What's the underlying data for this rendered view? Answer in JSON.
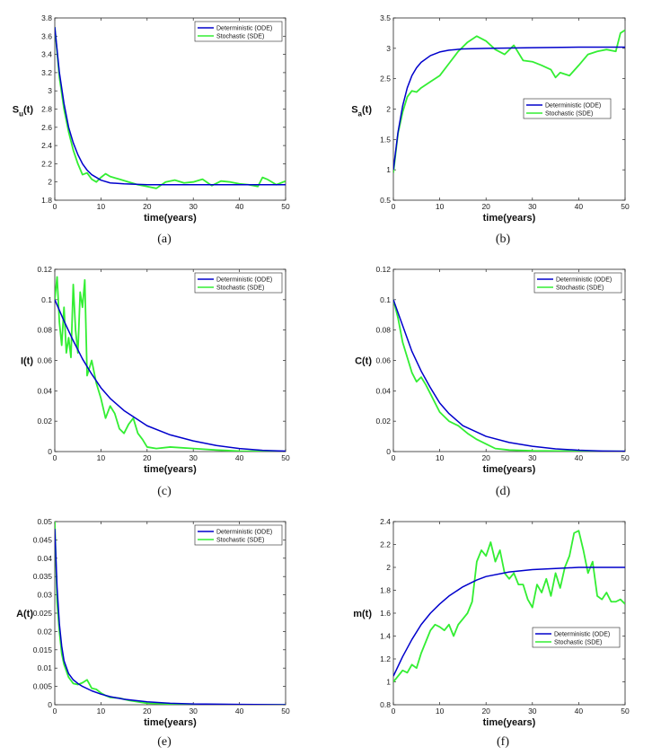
{
  "chart_data": [
    {
      "type": "line",
      "caption": "(a)",
      "ylabel": "S",
      "ylabel_sub": "u",
      "ylabel_tail": "(t)",
      "xlabel": "time(years)",
      "xlim": [
        0,
        50
      ],
      "ylim": [
        1.8,
        3.8
      ],
      "xticks": [
        0,
        10,
        20,
        30,
        40,
        50
      ],
      "yticks": [
        1.8,
        2,
        2.2,
        2.4,
        2.6,
        2.8,
        3,
        3.2,
        3.4,
        3.6,
        3.8
      ],
      "legend": "top-right",
      "series": [
        {
          "name": "Deterministic (ODE)",
          "color": "#0000cc",
          "x": [
            0,
            1,
            2,
            3,
            4,
            5,
            6,
            7,
            8,
            10,
            12,
            15,
            20,
            30,
            40,
            50
          ],
          "y": [
            3.7,
            3.2,
            2.86,
            2.6,
            2.43,
            2.3,
            2.2,
            2.13,
            2.08,
            2.02,
            1.99,
            1.98,
            1.97,
            1.97,
            1.97,
            1.97
          ]
        },
        {
          "name": "Stochastic (SDE)",
          "color": "#33ee33",
          "x": [
            0,
            1,
            2,
            3,
            4,
            5,
            6,
            7,
            8,
            9,
            10,
            11,
            12,
            14,
            16,
            18,
            20,
            22,
            24,
            26,
            28,
            30,
            32,
            34,
            36,
            38,
            40,
            42,
            44,
            45,
            46,
            48,
            50
          ],
          "y": [
            3.7,
            3.15,
            2.8,
            2.55,
            2.35,
            2.2,
            2.08,
            2.1,
            2.03,
            2.0,
            2.05,
            2.09,
            2.06,
            2.03,
            2.0,
            1.97,
            1.95,
            1.93,
            2.0,
            2.02,
            1.99,
            2.0,
            2.03,
            1.96,
            2.01,
            2.0,
            1.98,
            1.97,
            1.95,
            2.05,
            2.03,
            1.97,
            2.01
          ]
        }
      ]
    },
    {
      "type": "line",
      "caption": "(b)",
      "ylabel": "S",
      "ylabel_sub": "a",
      "ylabel_tail": "(t)",
      "xlabel": "time(years)",
      "xlim": [
        0,
        50
      ],
      "ylim": [
        0.5,
        3.5
      ],
      "xticks": [
        0,
        10,
        20,
        30,
        40,
        50
      ],
      "yticks": [
        0.5,
        1,
        1.5,
        2,
        2.5,
        3,
        3.5
      ],
      "legend": "center-right",
      "series": [
        {
          "name": "Deterministic (ODE)",
          "color": "#0000cc",
          "x": [
            0,
            1,
            2,
            3,
            4,
            5,
            6,
            8,
            10,
            12,
            15,
            20,
            30,
            40,
            50
          ],
          "y": [
            1.0,
            1.62,
            2.05,
            2.35,
            2.55,
            2.68,
            2.77,
            2.88,
            2.94,
            2.97,
            2.99,
            3.0,
            3.01,
            3.02,
            3.02
          ]
        },
        {
          "name": "Stochastic (SDE)",
          "color": "#33ee33",
          "x": [
            0,
            1,
            2,
            3,
            4,
            5,
            6,
            8,
            10,
            12,
            14,
            16,
            18,
            20,
            22,
            24,
            26,
            28,
            30,
            32,
            34,
            35,
            36,
            38,
            40,
            42,
            44,
            46,
            48,
            49,
            50
          ],
          "y": [
            0.95,
            1.6,
            1.95,
            2.2,
            2.3,
            2.28,
            2.35,
            2.45,
            2.55,
            2.75,
            2.95,
            3.1,
            3.2,
            3.12,
            2.98,
            2.9,
            3.05,
            2.8,
            2.78,
            2.72,
            2.65,
            2.52,
            2.6,
            2.55,
            2.72,
            2.9,
            2.95,
            2.98,
            2.95,
            3.25,
            3.3
          ]
        }
      ]
    },
    {
      "type": "line",
      "caption": "(c)",
      "ylabel": "I(t)",
      "ylabel_sub": "",
      "ylabel_tail": "",
      "xlabel": "time(years)",
      "xlim": [
        0,
        50
      ],
      "ylim": [
        0,
        0.12
      ],
      "xticks": [
        0,
        10,
        20,
        30,
        40,
        50
      ],
      "yticks": [
        0,
        0.02,
        0.04,
        0.06,
        0.08,
        0.1,
        0.12
      ],
      "legend": "top-right",
      "series": [
        {
          "name": "Deterministic (ODE)",
          "color": "#0000cc",
          "x": [
            0,
            2,
            4,
            6,
            8,
            10,
            12,
            15,
            20,
            25,
            30,
            35,
            40,
            45,
            50
          ],
          "y": [
            0.1,
            0.086,
            0.073,
            0.061,
            0.051,
            0.042,
            0.035,
            0.027,
            0.017,
            0.011,
            0.007,
            0.004,
            0.002,
            0.0008,
            0.0003
          ]
        },
        {
          "name": "Stochastic (SDE)",
          "color": "#33ee33",
          "x": [
            0,
            0.5,
            1,
            1.5,
            2,
            2.5,
            3,
            3.5,
            4,
            4.5,
            5,
            5.5,
            6,
            6.5,
            7,
            8,
            9,
            10,
            11,
            12,
            13,
            14,
            15,
            16,
            17,
            18,
            19,
            20,
            22,
            25,
            30,
            35,
            40,
            50
          ],
          "y": [
            0.1,
            0.115,
            0.085,
            0.07,
            0.095,
            0.065,
            0.075,
            0.062,
            0.11,
            0.08,
            0.065,
            0.105,
            0.095,
            0.113,
            0.05,
            0.06,
            0.045,
            0.035,
            0.022,
            0.03,
            0.025,
            0.015,
            0.012,
            0.018,
            0.022,
            0.012,
            0.008,
            0.003,
            0.002,
            0.003,
            0.002,
            0.001,
            0.0003,
            0.0001
          ]
        }
      ]
    },
    {
      "type": "line",
      "caption": "(d)",
      "ylabel": "C(t)",
      "ylabel_sub": "",
      "ylabel_tail": "",
      "xlabel": "time(years)",
      "xlim": [
        0,
        50
      ],
      "ylim": [
        0,
        0.12
      ],
      "xticks": [
        0,
        10,
        20,
        30,
        40,
        50
      ],
      "yticks": [
        0,
        0.02,
        0.04,
        0.06,
        0.08,
        0.1,
        0.12
      ],
      "legend": "top-right",
      "series": [
        {
          "name": "Deterministic (ODE)",
          "color": "#0000cc",
          "x": [
            0,
            2,
            4,
            6,
            8,
            10,
            12,
            15,
            20,
            25,
            30,
            35,
            40,
            45,
            50
          ],
          "y": [
            0.1,
            0.083,
            0.066,
            0.053,
            0.042,
            0.032,
            0.025,
            0.017,
            0.01,
            0.006,
            0.0035,
            0.0018,
            0.0009,
            0.0004,
            0.0002
          ]
        },
        {
          "name": "Stochastic (SDE)",
          "color": "#33ee33",
          "x": [
            0,
            1,
            2,
            3,
            4,
            5,
            6,
            7,
            8,
            10,
            12,
            14,
            16,
            18,
            20,
            22,
            25,
            30,
            40,
            50
          ],
          "y": [
            0.1,
            0.088,
            0.072,
            0.062,
            0.052,
            0.046,
            0.049,
            0.044,
            0.038,
            0.026,
            0.02,
            0.017,
            0.012,
            0.008,
            0.005,
            0.002,
            0.001,
            0.0005,
            0.0002,
            0.0001
          ]
        }
      ]
    },
    {
      "type": "line",
      "caption": "(e)",
      "ylabel": "A(t)",
      "ylabel_sub": "",
      "ylabel_tail": "",
      "xlabel": "time(years)",
      "xlim": [
        0,
        50
      ],
      "ylim": [
        0,
        0.05
      ],
      "xticks": [
        0,
        10,
        20,
        30,
        40,
        50
      ],
      "yticks": [
        0,
        0.005,
        0.01,
        0.015,
        0.02,
        0.025,
        0.03,
        0.035,
        0.04,
        0.045,
        0.05
      ],
      "legend": "top-right",
      "series": [
        {
          "name": "Deterministic (ODE)",
          "color": "#0000cc",
          "x": [
            0,
            0.5,
            1,
            1.5,
            2,
            3,
            4,
            5,
            6,
            8,
            10,
            12,
            15,
            20,
            25,
            30,
            40,
            50
          ],
          "y": [
            0.048,
            0.032,
            0.022,
            0.016,
            0.012,
            0.0085,
            0.0068,
            0.0058,
            0.005,
            0.0038,
            0.0029,
            0.0022,
            0.0015,
            0.0008,
            0.0004,
            0.0002,
            0.0001,
            0.0
          ]
        },
        {
          "name": "Stochastic (SDE)",
          "color": "#33ee33",
          "x": [
            0,
            0.5,
            1,
            1.5,
            2,
            3,
            4,
            5,
            6,
            7,
            8,
            9,
            10,
            11,
            12,
            14,
            16,
            18,
            20,
            25,
            30,
            40,
            50
          ],
          "y": [
            0.05,
            0.028,
            0.02,
            0.014,
            0.011,
            0.0075,
            0.0058,
            0.0055,
            0.006,
            0.0068,
            0.0045,
            0.0042,
            0.0032,
            0.0025,
            0.002,
            0.0018,
            0.0012,
            0.0008,
            0.0004,
            0.0002,
            0.0001,
            0.0,
            0.0
          ]
        }
      ]
    },
    {
      "type": "line",
      "caption": "(f)",
      "ylabel": "m(t)",
      "ylabel_sub": "",
      "ylabel_tail": "",
      "xlabel": "time(years)",
      "xlim": [
        0,
        50
      ],
      "ylim": [
        0.8,
        2.4
      ],
      "xticks": [
        0,
        10,
        20,
        30,
        40,
        50
      ],
      "yticks": [
        0.8,
        1,
        1.2,
        1.4,
        1.6,
        1.8,
        2,
        2.2,
        2.4
      ],
      "legend": "bottom-right",
      "series": [
        {
          "name": "Deterministic (ODE)",
          "color": "#0000cc",
          "x": [
            0,
            2,
            4,
            6,
            8,
            10,
            12,
            15,
            18,
            20,
            25,
            30,
            35,
            40,
            45,
            50
          ],
          "y": [
            1.05,
            1.22,
            1.37,
            1.5,
            1.6,
            1.68,
            1.75,
            1.83,
            1.89,
            1.92,
            1.96,
            1.98,
            1.99,
            2.0,
            2.0,
            2.0
          ]
        },
        {
          "name": "Stochastic (SDE)",
          "color": "#33ee33",
          "x": [
            0,
            1,
            2,
            3,
            4,
            5,
            6,
            7,
            8,
            9,
            10,
            11,
            12,
            13,
            14,
            15,
            16,
            17,
            18,
            19,
            20,
            21,
            22,
            23,
            24,
            25,
            26,
            27,
            28,
            29,
            30,
            31,
            32,
            33,
            34,
            35,
            36,
            37,
            38,
            39,
            40,
            41,
            42,
            43,
            44,
            45,
            46,
            47,
            48,
            49,
            50
          ],
          "y": [
            1.0,
            1.05,
            1.1,
            1.08,
            1.15,
            1.12,
            1.25,
            1.35,
            1.45,
            1.5,
            1.48,
            1.45,
            1.5,
            1.4,
            1.5,
            1.55,
            1.6,
            1.7,
            2.05,
            2.15,
            2.1,
            2.22,
            2.05,
            2.15,
            1.95,
            1.9,
            1.95,
            1.85,
            1.85,
            1.72,
            1.65,
            1.85,
            1.78,
            1.9,
            1.75,
            1.95,
            1.82,
            2.0,
            2.1,
            2.3,
            2.32,
            2.15,
            1.95,
            2.05,
            1.75,
            1.72,
            1.78,
            1.7,
            1.7,
            1.72,
            1.68
          ]
        }
      ]
    }
  ]
}
